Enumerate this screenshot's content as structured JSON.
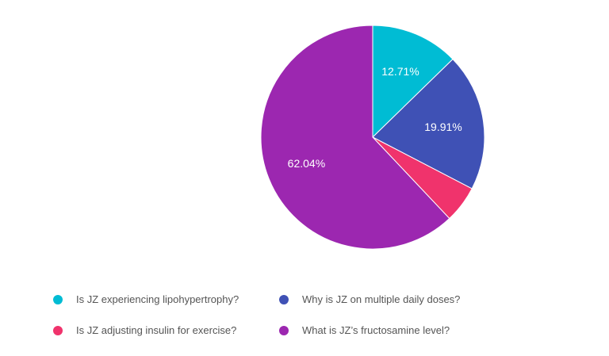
{
  "chart_data": {
    "type": "pie",
    "start_angle_deg": 0,
    "direction": "clockwise",
    "slices": [
      {
        "name": "Is JZ experiencing lipohypertrophy?",
        "value": 12.71,
        "label": "12.71%",
        "color": "#00bcd4"
      },
      {
        "name": "Why is JZ on multiple daily doses?",
        "value": 19.91,
        "label": "19.91%",
        "color": "#3f51b5"
      },
      {
        "name": "Is JZ adjusting insulin for exercise?",
        "value": 5.34,
        "label": "",
        "color": "#f0336c"
      },
      {
        "name": "What is JZ’s fructosamine level?",
        "value": 62.04,
        "label": "62.04%",
        "color": "#9c27b0"
      }
    ],
    "legend": {
      "placement": "bottom",
      "items": [
        {
          "label": "Is JZ experiencing lipohypertrophy?",
          "color": "#00bcd4"
        },
        {
          "label": "Why is JZ on multiple daily doses?",
          "color": "#3f51b5"
        },
        {
          "label": "Is JZ adjusting insulin for exercise?",
          "color": "#f0336c"
        },
        {
          "label": "What is JZ’s fructosamine level?",
          "color": "#9c27b0"
        }
      ]
    }
  }
}
